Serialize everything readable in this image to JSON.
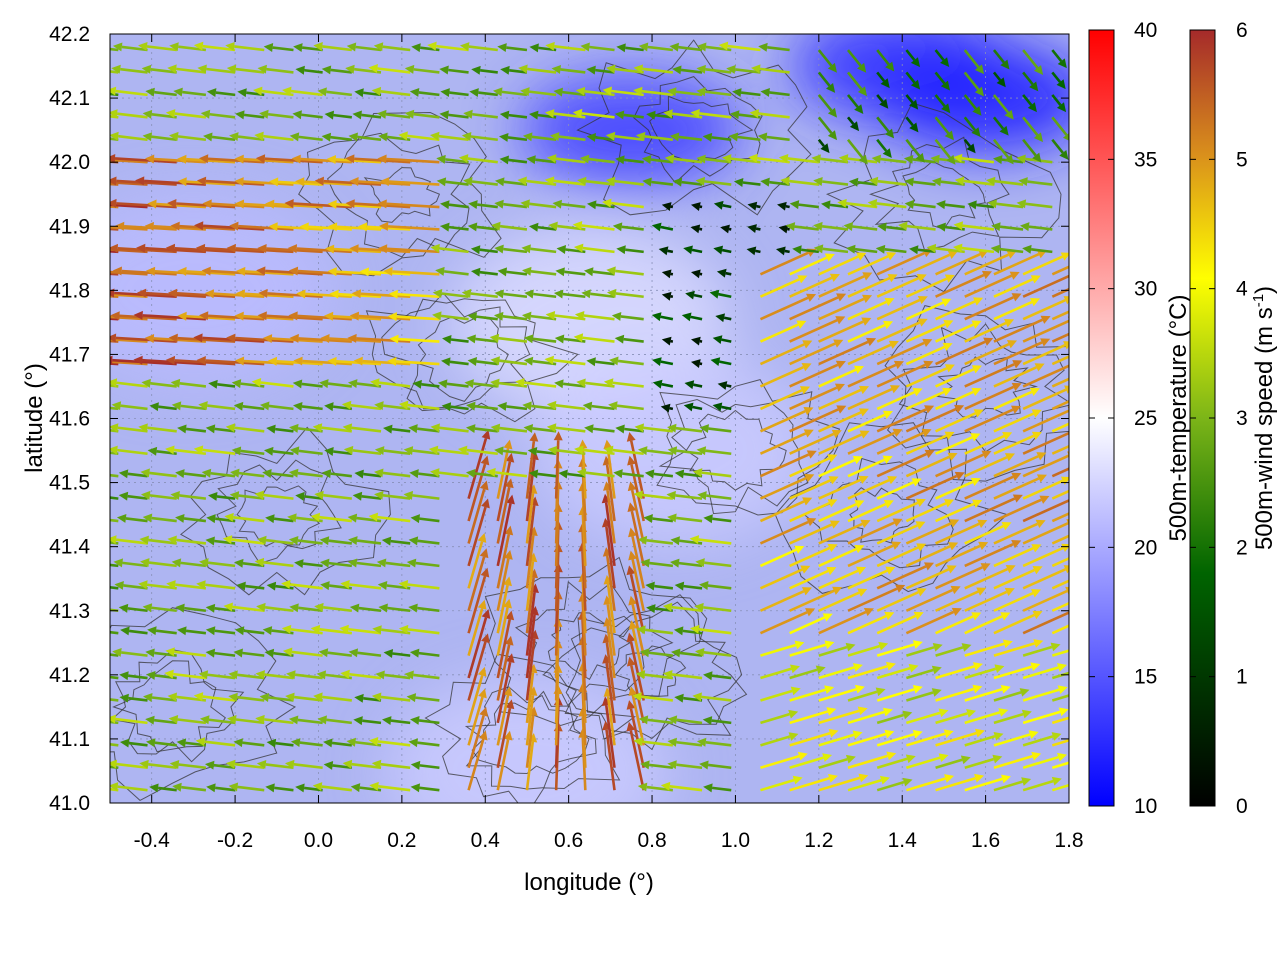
{
  "chart_data": {
    "type": "heatmap",
    "overlays": [
      "wind vector field",
      "contour lines"
    ],
    "xlabel": "longitude (°)",
    "ylabel": "latitude (°)",
    "xlim": [
      -0.5,
      1.8
    ],
    "ylim": [
      41.0,
      42.2
    ],
    "x_ticks": [
      "-0.4",
      "-0.2",
      "0.0",
      "0.2",
      "0.4",
      "0.6",
      "0.8",
      "1.0",
      "1.2",
      "1.4",
      "1.6",
      "1.8"
    ],
    "y_ticks": [
      "41.0",
      "41.1",
      "41.2",
      "41.3",
      "41.4",
      "41.5",
      "41.6",
      "41.7",
      "41.8",
      "41.9",
      "42.0",
      "42.1",
      "42.2"
    ],
    "grid": true,
    "colorbars": [
      {
        "label": "500m-temperature (°C)",
        "range": [
          10,
          40
        ],
        "ticks": [
          "10",
          "15",
          "20",
          "25",
          "30",
          "35",
          "40"
        ],
        "colors": [
          "#0000ff",
          "#ffffff",
          "#ff0000"
        ]
      },
      {
        "label_main": "500m-wind speed (m s",
        "label_sup": "-1",
        "label_end": ")",
        "range": [
          0,
          6
        ],
        "ticks": [
          "0",
          "1",
          "2",
          "3",
          "4",
          "5",
          "6"
        ],
        "colors": [
          "#000000",
          "#006400",
          "#7cb518",
          "#ffff00",
          "#d98f1c",
          "#a52a2a"
        ]
      }
    ],
    "temperature_field_approx_c": {
      "background": 18,
      "warm_regions": [
        {
          "lon": -0.3,
          "lat": 41.8,
          "t": 21
        },
        {
          "lon": 0.65,
          "lat": 41.75,
          "t": 23
        },
        {
          "lon": 0.5,
          "lat": 41.05,
          "t": 22
        },
        {
          "lon": 0.85,
          "lat": 41.55,
          "t": 22
        }
      ],
      "cold_regions": [
        {
          "lon": 0.75,
          "lat": 42.05,
          "t": 14
        },
        {
          "lon": 1.4,
          "lat": 42.15,
          "t": 13
        },
        {
          "lon": 1.6,
          "lat": 42.1,
          "t": 12
        }
      ]
    },
    "wind_regimes": [
      {
        "region": "west, lat 41.7-42.0",
        "direction": "westward",
        "speed_ms": 6
      },
      {
        "region": "south-central, lon 0.4-0.8, lat 41.0-41.5",
        "direction": "northward, converging",
        "speed_ms": 5.5
      },
      {
        "region": "east, lon 1.1-1.8, lat 41.3-41.8",
        "direction": "north-eastward",
        "speed_ms": 4.5
      },
      {
        "region": "center, lon 0.8-1.2, lat 41.6-41.9",
        "direction": "weak",
        "speed_ms": 0.5
      }
    ]
  }
}
